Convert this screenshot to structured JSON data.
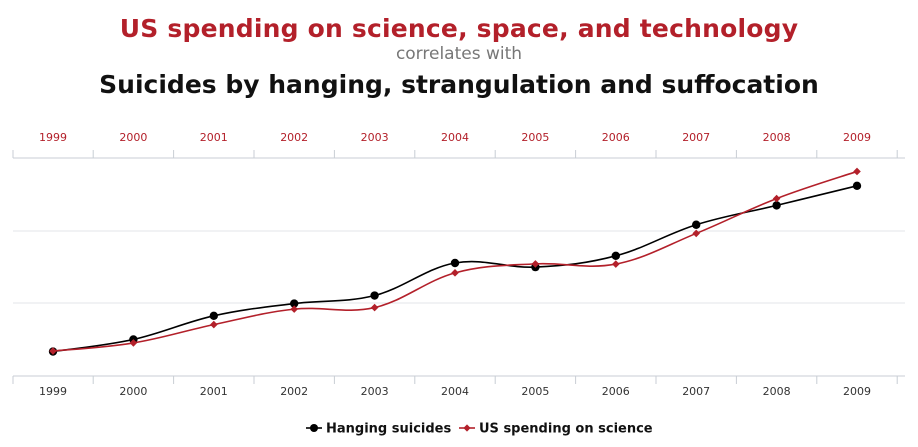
{
  "chart_data": {
    "type": "line",
    "title": "US spending on science, space, and technology",
    "subtitle": "correlates with",
    "title2": "Suicides by hanging, strangulation and suffocation",
    "x": [
      "1999",
      "2000",
      "2001",
      "2002",
      "2003",
      "2004",
      "2005",
      "2006",
      "2007",
      "2008",
      "2009"
    ],
    "series": [
      {
        "name": "Hanging suicides",
        "color": "#000000",
        "marker": "circle",
        "values": [
          5427,
          5688,
          6198,
          6462,
          6635,
          7336,
          7248,
          7491,
          8161,
          8578,
          9000
        ]
      },
      {
        "name": "US spending on science",
        "color": "#b3202a",
        "marker": "diamond",
        "values": [
          18079,
          18594,
          19753,
          20734,
          20831,
          23029,
          23597,
          23584,
          25525,
          27731,
          29449
        ]
      }
    ],
    "grid": true,
    "legend": "bottom-center"
  }
}
